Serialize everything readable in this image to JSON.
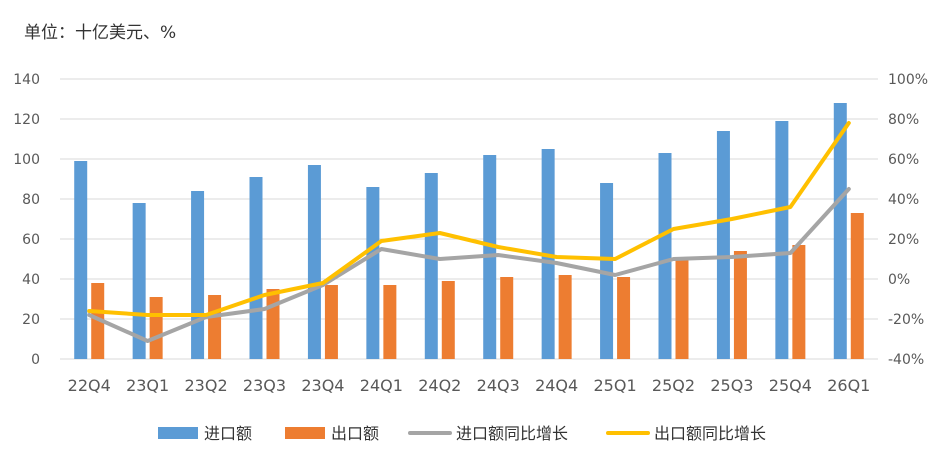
{
  "unit_label": "单位：十亿美元、%",
  "chart_data": {
    "type": "bar",
    "categories": [
      "22Q4",
      "23Q1",
      "23Q2",
      "23Q3",
      "23Q4",
      "24Q1",
      "24Q2",
      "24Q3",
      "24Q4",
      "25Q1",
      "25Q2",
      "25Q3",
      "25Q4",
      "26Q1"
    ],
    "ylim": [
      0,
      140
    ],
    "yticks": [
      0,
      20,
      40,
      60,
      80,
      100,
      120,
      140
    ],
    "y2lim": [
      -40,
      100
    ],
    "y2ticks": [
      "-40%",
      "-20%",
      "0%",
      "20%",
      "40%",
      "60%",
      "80%",
      "100%"
    ],
    "grid": true,
    "legend_position": "bottom",
    "series": [
      {
        "name": "进口额",
        "kind": "bar",
        "axis": "left",
        "color": "#5B9BD5",
        "values": [
          99,
          78,
          84,
          91,
          97,
          86,
          93,
          102,
          105,
          88,
          103,
          114,
          119,
          128
        ]
      },
      {
        "name": "出口额",
        "kind": "bar",
        "axis": "left",
        "color": "#ED7D31",
        "values": [
          38,
          31,
          32,
          35,
          37,
          37,
          39,
          41,
          42,
          41,
          50,
          54,
          57,
          73
        ]
      },
      {
        "name": "进口额同比增长",
        "kind": "line",
        "axis": "right",
        "color": "#A5A5A5",
        "values": [
          -18,
          -31,
          -19,
          -15,
          -3,
          15,
          10,
          12,
          8,
          2,
          10,
          11,
          13,
          45
        ]
      },
      {
        "name": "出口额同比增长",
        "kind": "line",
        "axis": "right",
        "color": "#FFC000",
        "values": [
          -16,
          -18,
          -18,
          -8,
          -2,
          19,
          23,
          16,
          11,
          10,
          25,
          30,
          36,
          78
        ]
      }
    ]
  }
}
